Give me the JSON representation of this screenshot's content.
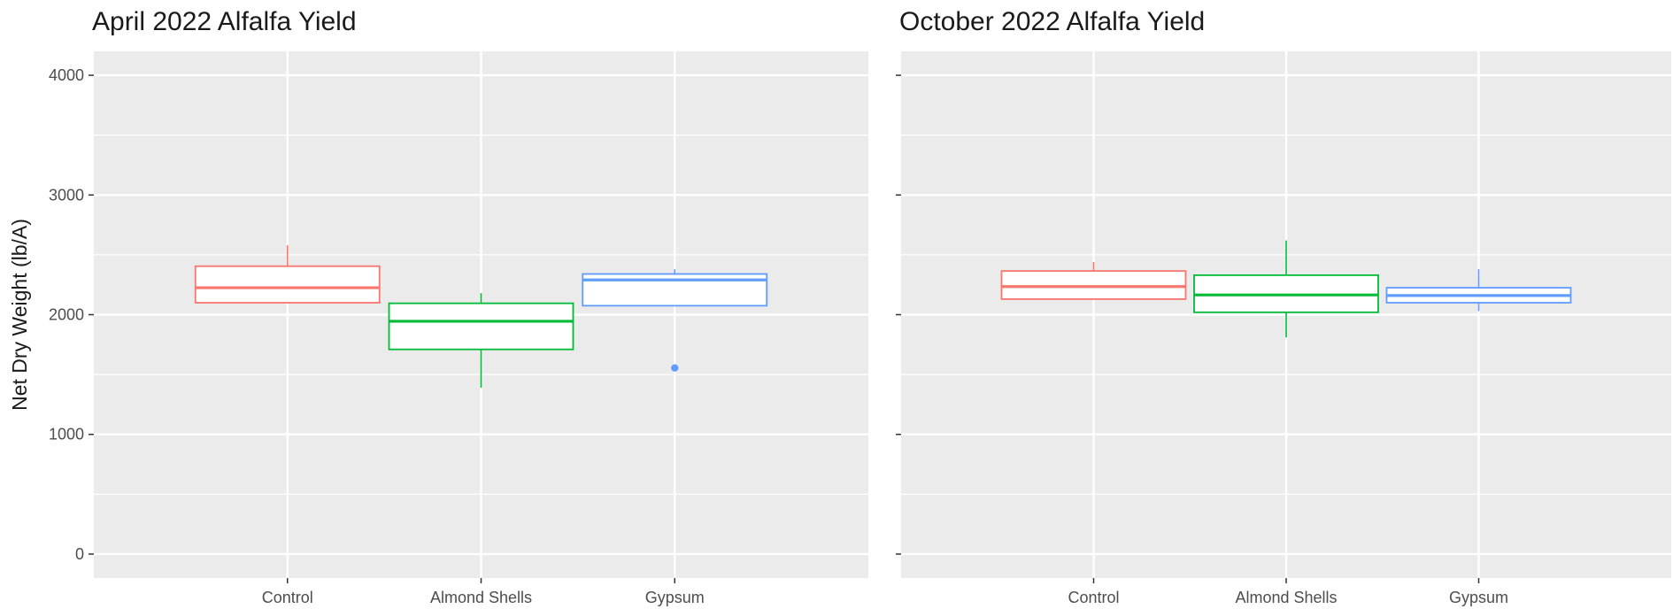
{
  "chart_data": [
    {
      "type": "boxplot",
      "title": "April 2022 Alfalfa Yield",
      "xlabel": "",
      "ylabel": "Net Dry Weight (lb/A)",
      "ylim": [
        -200,
        4200
      ],
      "yticks": [
        "0",
        "1000",
        "2000",
        "3000",
        "4000"
      ],
      "show_y_tick_labels": true,
      "grid": true,
      "categories": [
        "Control",
        "Almond Shells",
        "Gypsum"
      ],
      "boxes": [
        {
          "category": "Control",
          "color": "#F8766D",
          "whisker_low": 2100,
          "q1": 2100,
          "median": 2225,
          "q3": 2405,
          "whisker_high": 2580,
          "outliers": []
        },
        {
          "category": "Almond Shells",
          "color": "#00BA38",
          "whisker_low": 1390,
          "q1": 1710,
          "median": 1945,
          "q3": 2095,
          "whisker_high": 2180,
          "outliers": []
        },
        {
          "category": "Gypsum",
          "color": "#619CFF",
          "whisker_low": 2075,
          "q1": 2075,
          "median": 2290,
          "q3": 2340,
          "whisker_high": 2380,
          "outliers": [
            1555
          ]
        }
      ]
    },
    {
      "type": "boxplot",
      "title": "October 2022 Alfalfa Yield",
      "xlabel": "",
      "ylabel": "",
      "ylim": [
        -200,
        4200
      ],
      "yticks": [
        "0",
        "1000",
        "2000",
        "3000",
        "4000"
      ],
      "show_y_tick_labels": false,
      "grid": true,
      "categories": [
        "Control",
        "Almond Shells",
        "Gypsum"
      ],
      "boxes": [
        {
          "category": "Control",
          "color": "#F8766D",
          "whisker_low": 2130,
          "q1": 2130,
          "median": 2235,
          "q3": 2365,
          "whisker_high": 2440,
          "outliers": []
        },
        {
          "category": "Almond Shells",
          "color": "#00BA38",
          "whisker_low": 1810,
          "q1": 2020,
          "median": 2165,
          "q3": 2330,
          "whisker_high": 2620,
          "outliers": []
        },
        {
          "category": "Gypsum",
          "color": "#619CFF",
          "whisker_low": 2030,
          "q1": 2100,
          "median": 2160,
          "q3": 2225,
          "whisker_high": 2380,
          "outliers": []
        }
      ]
    }
  ],
  "style": {
    "panel_background": "#EBEBEB",
    "grid_color": "#FFFFFF",
    "box_fill": "#FFFFFF",
    "text_color": "#1A1A1A",
    "tick_color": "#4D4D4D"
  }
}
